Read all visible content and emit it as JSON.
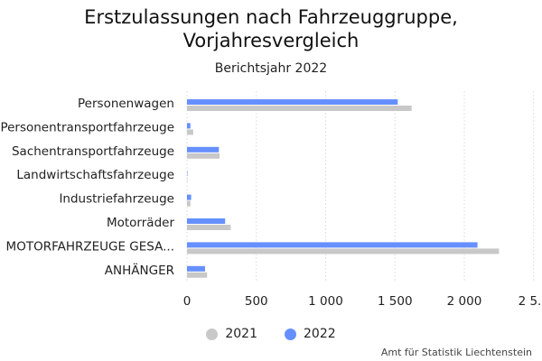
{
  "chart_data": {
    "type": "bar",
    "orientation": "horizontal",
    "title": "Erstzulassungen nach Fahrzeuggruppe, Vorjahresvergleich",
    "subtitle": "Berichtsjahr 2022",
    "categories": [
      "Personenwagen",
      "Personentransportfahrzeuge",
      "Sachentransportfahrzeuge",
      "Landwirtschaftsfahrzeuge",
      "Industriefahrzeuge",
      "Motorräder",
      "MOTORFAHRZEUGE GESA...",
      "ANHÄNGER"
    ],
    "series": [
      {
        "name": "2022",
        "color": "#6690ff",
        "values": [
          1520,
          25,
          230,
          2,
          30,
          275,
          2095,
          130
        ]
      },
      {
        "name": "2021",
        "color": "#c8c8c8",
        "values": [
          1620,
          45,
          235,
          3,
          25,
          315,
          2250,
          145
        ]
      }
    ],
    "xlim": [
      0,
      2500
    ],
    "xticks": [
      0,
      500,
      1000,
      1500,
      2000,
      2500
    ],
    "xtick_labels": [
      "0",
      "500",
      "1 000",
      "1 500",
      "2 000",
      "2 5..."
    ],
    "grid": true,
    "legend_position": "bottom",
    "legend_order": [
      "2021",
      "2022"
    ]
  },
  "credit": "Amt für Statistik Liechtenstein"
}
